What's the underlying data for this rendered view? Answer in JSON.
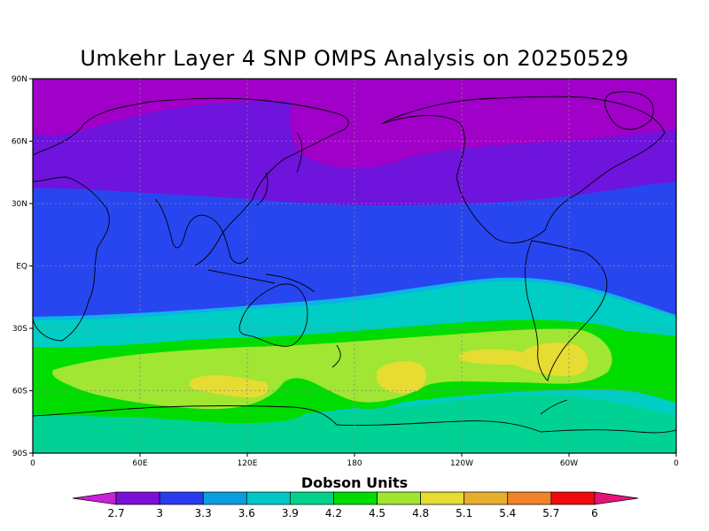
{
  "title": "Umkehr Layer 4 SNP OMPS Analysis on 20250529",
  "lat_labels": [
    "90N",
    "60N",
    "30N",
    "EQ",
    "30S",
    "60S",
    "90S"
  ],
  "lon_labels": [
    "0",
    "60E",
    "120E",
    "180",
    "120W",
    "60W",
    "0"
  ],
  "colorbar": {
    "label": "Dobson Units",
    "ticks": [
      "2.7",
      "3",
      "3.3",
      "3.6",
      "3.9",
      "4.2",
      "4.5",
      "4.8",
      "5.1",
      "5.4",
      "5.7",
      "6"
    ],
    "colors": [
      "#c81fd8",
      "#7a10d8",
      "#2a3af0",
      "#0a9ee0",
      "#00c8c8",
      "#00d28c",
      "#00dc00",
      "#a0e630",
      "#e6dc32",
      "#e6af2d",
      "#f08228",
      "#f00a0a",
      "#e61478"
    ]
  },
  "field_colors": {
    "magenta": "#a000c8",
    "purple": "#6e14dc",
    "blue": "#2846f0",
    "sky": "#0ab4e6",
    "cyan": "#00cdc3",
    "teal": "#00d296",
    "green": "#00dc00",
    "lime": "#a0e632",
    "yellow": "#e6dc32"
  }
}
